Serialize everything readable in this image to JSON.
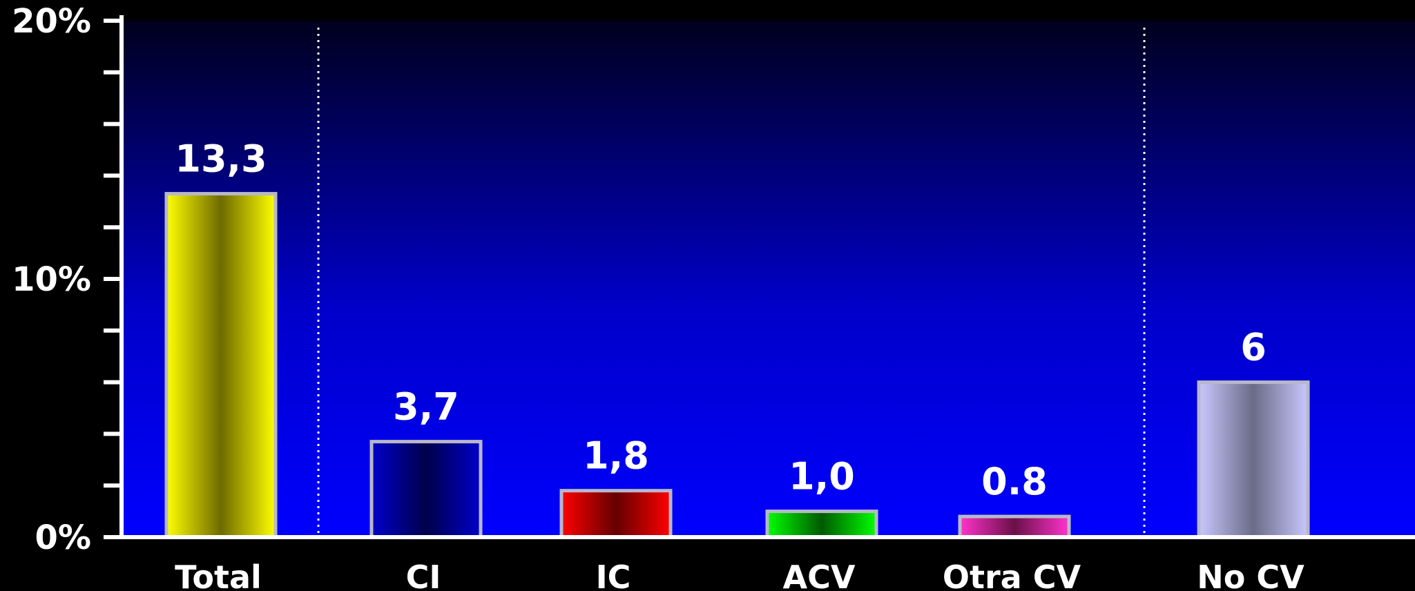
{
  "chart_data": {
    "type": "bar",
    "categories": [
      "Total",
      "CI",
      "IC",
      "ACV",
      "Otra CV",
      "No CV"
    ],
    "values": [
      13.3,
      3.7,
      1.8,
      1.0,
      0.8,
      6
    ],
    "data_labels": [
      "13,3",
      "3,7",
      "1,8",
      "1,0",
      "0.8",
      "6"
    ],
    "ylim": [
      0,
      20
    ],
    "yticks": [
      {
        "value": 0,
        "label": "0%"
      },
      {
        "value": 10,
        "label": "10%"
      },
      {
        "value": 20,
        "label": "20%"
      }
    ],
    "minor_tick_step": 2,
    "title": "",
    "xlabel": "",
    "ylabel": "",
    "grid": false,
    "colors": {
      "Total": [
        "#ffff00",
        "#6e6a00"
      ],
      "CI": [
        "#0000cc",
        "#00004a"
      ],
      "IC": [
        "#ff0000",
        "#650000"
      ],
      "ACV": [
        "#00ff00",
        "#005a00"
      ],
      "Otra CV": [
        "#ff33cc",
        "#6a1048"
      ],
      "No CV": [
        "#c8c8ff",
        "#6b6b88"
      ]
    },
    "bar_border": "#b8b8c8",
    "background": [
      "#00001e",
      "#0000ff"
    ],
    "separator_color": "#ffffff"
  }
}
